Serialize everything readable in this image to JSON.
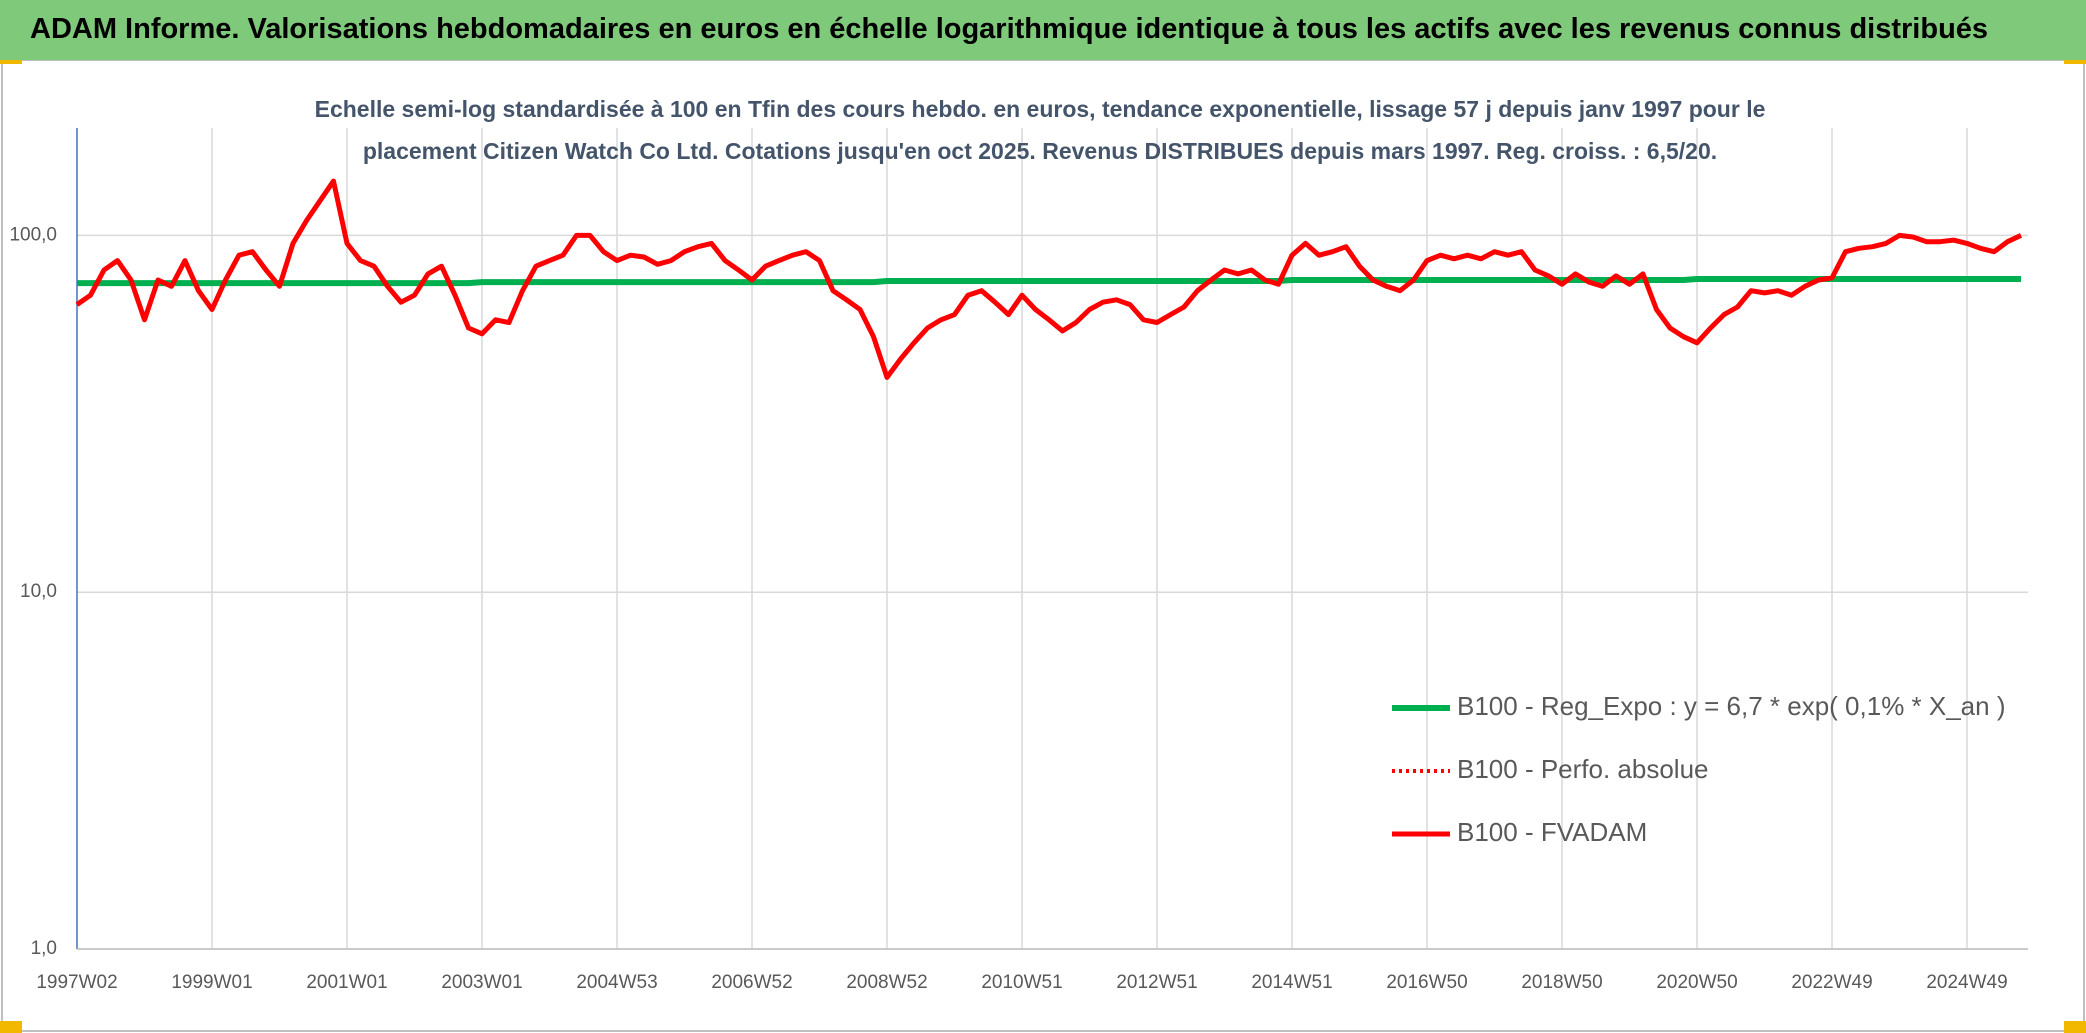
{
  "chart_data": {
    "type": "line",
    "title": "ADAM Informe. Valorisations hebdomadaires en euros en échelle logarithmique identique à tous les actifs avec les revenus connus distribués",
    "subtitle": "Echelle semi-log standardisée à 100 en Tfin des cours hebdo. en euros, tendance exponentielle, lissage 57 j depuis janv 1997 pour le placement Citizen Watch Co Ltd. Cotations jusqu'en oct 2025. Revenus DISTRIBUES depuis mars 1997. Reg. croiss. : 6,5/20.",
    "log_scale": true,
    "grid": true,
    "legend": "right",
    "ylim": [
      1,
      200
    ],
    "yticks": [
      {
        "value": 1,
        "label": "1,0"
      },
      {
        "value": 10,
        "label": "10,0"
      },
      {
        "value": 100,
        "label": "100,0"
      }
    ],
    "categories": [
      "1997W02",
      null,
      null,
      null,
      null,
      null,
      null,
      null,
      null,
      null,
      "1999W01",
      null,
      null,
      null,
      null,
      null,
      null,
      null,
      null,
      null,
      "2001W01",
      null,
      null,
      null,
      null,
      null,
      null,
      null,
      null,
      null,
      "2003W01",
      null,
      null,
      null,
      null,
      null,
      null,
      null,
      null,
      null,
      "2004W53",
      null,
      null,
      null,
      null,
      null,
      null,
      null,
      null,
      null,
      "2006W52",
      null,
      null,
      null,
      null,
      null,
      null,
      null,
      null,
      null,
      "2008W52",
      null,
      null,
      null,
      null,
      null,
      null,
      null,
      null,
      null,
      "2010W51",
      null,
      null,
      null,
      null,
      null,
      null,
      null,
      null,
      null,
      "2012W51",
      null,
      null,
      null,
      null,
      null,
      null,
      null,
      null,
      null,
      "2014W51",
      null,
      null,
      null,
      null,
      null,
      null,
      null,
      null,
      null,
      "2016W50",
      null,
      null,
      null,
      null,
      null,
      null,
      null,
      null,
      null,
      "2018W50",
      null,
      null,
      null,
      null,
      null,
      null,
      null,
      null,
      null,
      "2020W50",
      null,
      null,
      null,
      null,
      null,
      null,
      null,
      null,
      null,
      "2022W49",
      null,
      null,
      null,
      null,
      null,
      null,
      null,
      null,
      null,
      "2024W49",
      null,
      null,
      null,
      null
    ],
    "series": [
      {
        "name": "B100 - Reg_Expo : y = 6,7 * exp( 0,1% *  X_an )",
        "color": "#00b050",
        "style": "solid",
        "width": 6,
        "values": [
          73.5,
          73.5,
          73.5,
          73.5,
          73.5,
          73.5,
          73.5,
          73.5,
          73.5,
          73.5,
          73.5,
          73.5,
          73.5,
          73.5,
          73.5,
          73.5,
          73.5,
          73.5,
          73.5,
          73.5,
          73.5,
          73.5,
          73.5,
          73.5,
          73.5,
          73.5,
          73.5,
          73.5,
          73.5,
          73.5,
          74,
          74,
          74,
          74,
          74,
          74,
          74,
          74,
          74,
          74,
          74,
          74,
          74,
          74,
          74,
          74,
          74,
          74,
          74,
          74,
          74,
          74,
          74,
          74,
          74,
          74,
          74,
          74,
          74,
          74,
          74.5,
          74.5,
          74.5,
          74.5,
          74.5,
          74.5,
          74.5,
          74.5,
          74.5,
          74.5,
          74.5,
          74.5,
          74.5,
          74.5,
          74.5,
          74.5,
          74.5,
          74.5,
          74.5,
          74.5,
          74.5,
          74.5,
          74.5,
          74.5,
          74.5,
          74.5,
          74.5,
          74.5,
          74.5,
          74.5,
          75,
          75,
          75,
          75,
          75,
          75,
          75,
          75,
          75,
          75,
          75,
          75,
          75,
          75,
          75,
          75,
          75,
          75,
          75,
          75,
          75,
          75,
          75,
          75,
          75,
          75,
          75,
          75,
          75,
          75,
          75.5,
          75.5,
          75.5,
          75.5,
          75.5,
          75.5,
          75.5,
          75.5,
          75.5,
          75.5,
          75.5,
          75.5,
          75.5,
          75.5,
          75.5,
          75.5,
          75.5,
          75.5,
          75.5,
          75.5,
          75.5,
          75.5,
          75.5,
          75.5,
          75.5
        ]
      },
      {
        "name": "B100 - Perfo. absolue",
        "color": "#ff0000",
        "style": "dotted",
        "width": 4,
        "values": [
          64,
          68,
          80,
          85,
          75,
          58,
          75,
          72,
          85,
          70,
          62,
          75,
          88,
          90,
          80,
          72,
          95,
          110,
          125,
          142,
          95,
          85,
          82,
          72,
          65,
          68,
          78,
          82,
          68,
          55,
          53,
          58,
          57,
          70,
          82,
          85,
          88,
          100,
          100,
          90,
          85,
          88,
          87,
          83,
          85,
          90,
          93,
          95,
          85,
          80,
          75,
          82,
          85,
          88,
          90,
          85,
          70,
          66,
          62,
          52,
          40,
          45,
          50,
          55,
          58,
          60,
          68,
          70,
          65,
          60,
          68,
          62,
          58,
          54,
          57,
          62,
          65,
          66,
          64,
          58,
          57,
          60,
          63,
          70,
          75,
          80,
          78,
          80,
          75,
          73,
          88,
          95,
          88,
          90,
          93,
          82,
          75,
          72,
          70,
          75,
          85,
          88,
          86,
          88,
          86,
          90,
          88,
          90,
          80,
          77,
          73,
          78,
          74,
          72,
          77,
          73,
          78,
          62,
          55,
          52,
          50,
          55,
          60,
          63,
          70,
          69,
          70,
          68,
          72,
          75,
          76,
          90,
          92,
          93,
          95,
          100,
          99,
          96,
          96,
          97,
          95,
          92,
          90,
          96,
          100
        ]
      },
      {
        "name": "B100 - FVADAM",
        "color": "#ff0000",
        "style": "solid",
        "width": 5,
        "values": [
          64,
          68,
          80,
          85,
          75,
          58,
          75,
          72,
          85,
          70,
          62,
          75,
          88,
          90,
          80,
          72,
          95,
          110,
          125,
          142,
          95,
          85,
          82,
          72,
          65,
          68,
          78,
          82,
          68,
          55,
          53,
          58,
          57,
          70,
          82,
          85,
          88,
          100,
          100,
          90,
          85,
          88,
          87,
          83,
          85,
          90,
          93,
          95,
          85,
          80,
          75,
          82,
          85,
          88,
          90,
          85,
          70,
          66,
          62,
          52,
          40,
          45,
          50,
          55,
          58,
          60,
          68,
          70,
          65,
          60,
          68,
          62,
          58,
          54,
          57,
          62,
          65,
          66,
          64,
          58,
          57,
          60,
          63,
          70,
          75,
          80,
          78,
          80,
          75,
          73,
          88,
          95,
          88,
          90,
          93,
          82,
          75,
          72,
          70,
          75,
          85,
          88,
          86,
          88,
          86,
          90,
          88,
          90,
          80,
          77,
          73,
          78,
          74,
          72,
          77,
          73,
          78,
          62,
          55,
          52,
          50,
          55,
          60,
          63,
          70,
          69,
          70,
          68,
          72,
          75,
          76,
          90,
          92,
          93,
          95,
          100,
          99,
          96,
          96,
          97,
          95,
          92,
          90,
          96,
          100
        ]
      }
    ]
  }
}
